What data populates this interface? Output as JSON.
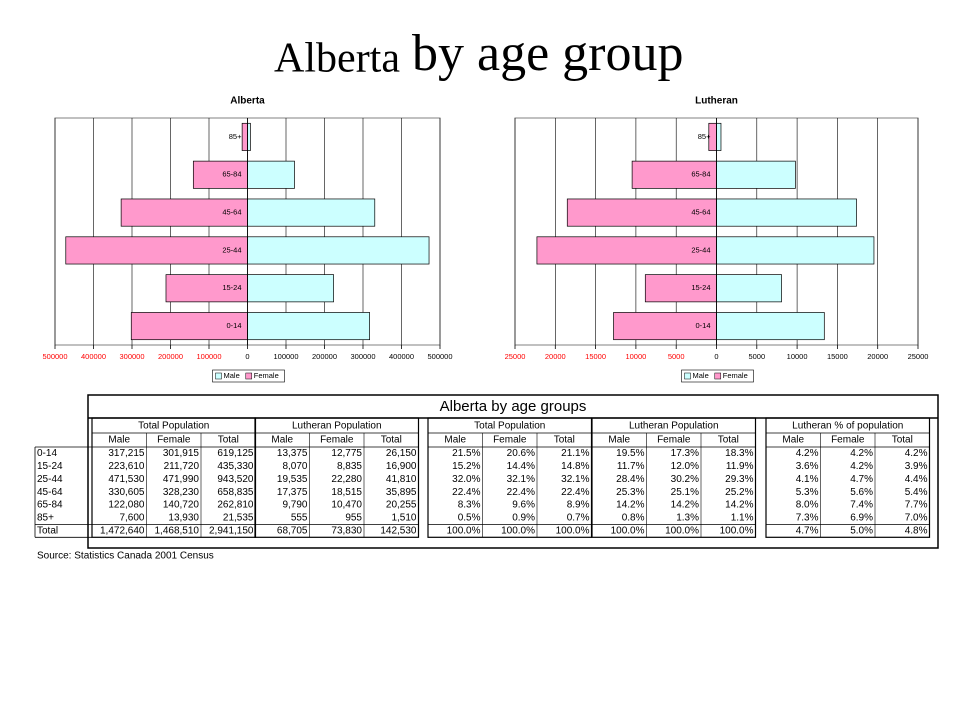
{
  "title": {
    "lead": "Alberta",
    "rest": "by age group"
  },
  "chart_data": [
    {
      "type": "pyramid",
      "title": "Alberta",
      "categories": [
        "0-14",
        "15-24",
        "25-44",
        "45-64",
        "65-84",
        "85+"
      ],
      "series": [
        {
          "name": "Male",
          "color": "#ccffff",
          "values": [
            317215,
            223610,
            471530,
            330605,
            122080,
            7600
          ]
        },
        {
          "name": "Female",
          "color": "#ff99cc",
          "values": [
            -301915,
            -211720,
            -471990,
            -328230,
            -140720,
            -13930
          ]
        }
      ],
      "xlim": [
        -500000,
        500000
      ],
      "xticks": [
        {
          "value": -500000,
          "label": "500000"
        },
        {
          "value": -400000,
          "label": "400000"
        },
        {
          "value": -300000,
          "label": "300000"
        },
        {
          "value": -200000,
          "label": "200000"
        },
        {
          "value": -100000,
          "label": "100000"
        },
        0,
        100000,
        200000,
        300000,
        400000,
        500000
      ],
      "grid": true,
      "legend": "bottom"
    },
    {
      "type": "pyramid",
      "title": "Lutheran",
      "categories": [
        "0-14",
        "15-24",
        "25-44",
        "45-64",
        "65-84",
        "85+"
      ],
      "series": [
        {
          "name": "Male",
          "color": "#ccffff",
          "values": [
            13375,
            8070,
            19535,
            17375,
            9790,
            555
          ]
        },
        {
          "name": "Female",
          "color": "#ff99cc",
          "values": [
            -12775,
            -8835,
            -22280,
            -18515,
            -10470,
            -955
          ]
        }
      ],
      "xlim": [
        -25000,
        25000
      ],
      "xticks": [
        {
          "value": -25000,
          "label": "25000"
        },
        {
          "value": -20000,
          "label": "20000"
        },
        {
          "value": -15000,
          "label": "15000"
        },
        {
          "value": -10000,
          "label": "10000"
        },
        {
          "value": -5000,
          "label": "5000"
        },
        0,
        5000,
        10000,
        15000,
        20000,
        25000
      ],
      "grid": true,
      "legend": "bottom"
    }
  ],
  "table": {
    "title": "Alberta by age groups",
    "groups": [
      "Total Population",
      "Lutheran Population",
      "Total Population",
      "Lutheran Population",
      "Lutheran % of population"
    ],
    "subheaders": [
      "Male",
      "Female",
      "Total"
    ],
    "rows": [
      [
        "0-14",
        "317,215",
        "301,915",
        "619,125",
        "13,375",
        "12,775",
        "26,150",
        "21.5%",
        "20.6%",
        "21.1%",
        "19.5%",
        "17.3%",
        "18.3%",
        "4.2%",
        "4.2%",
        "4.2%"
      ],
      [
        "15-24",
        "223,610",
        "211,720",
        "435,330",
        "8,070",
        "8,835",
        "16,900",
        "15.2%",
        "14.4%",
        "14.8%",
        "11.7%",
        "12.0%",
        "11.9%",
        "3.6%",
        "4.2%",
        "3.9%"
      ],
      [
        "25-44",
        "471,530",
        "471,990",
        "943,520",
        "19,535",
        "22,280",
        "41,810",
        "32.0%",
        "32.1%",
        "32.1%",
        "28.4%",
        "30.2%",
        "29.3%",
        "4.1%",
        "4.7%",
        "4.4%"
      ],
      [
        "45-64",
        "330,605",
        "328,230",
        "658,835",
        "17,375",
        "18,515",
        "35,895",
        "22.4%",
        "22.4%",
        "22.4%",
        "25.3%",
        "25.1%",
        "25.2%",
        "5.3%",
        "5.6%",
        "5.4%"
      ],
      [
        "65-84",
        "122,080",
        "140,720",
        "262,810",
        "9,790",
        "10,470",
        "20,255",
        "8.3%",
        "9.6%",
        "8.9%",
        "14.2%",
        "14.2%",
        "14.2%",
        "8.0%",
        "7.4%",
        "7.7%"
      ],
      [
        "85+",
        "7,600",
        "13,930",
        "21,535",
        "555",
        "955",
        "1,510",
        "0.5%",
        "0.9%",
        "0.7%",
        "0.8%",
        "1.3%",
        "1.1%",
        "7.3%",
        "6.9%",
        "7.0%"
      ],
      [
        "Total",
        "1,472,640",
        "1,468,510",
        "2,941,150",
        "68,705",
        "73,830",
        "142,530",
        "100.0%",
        "100.0%",
        "100.0%",
        "100.0%",
        "100.0%",
        "100.0%",
        "4.7%",
        "5.0%",
        "4.8%"
      ]
    ],
    "source": "Source: Statistics Canada 2001 Census"
  }
}
